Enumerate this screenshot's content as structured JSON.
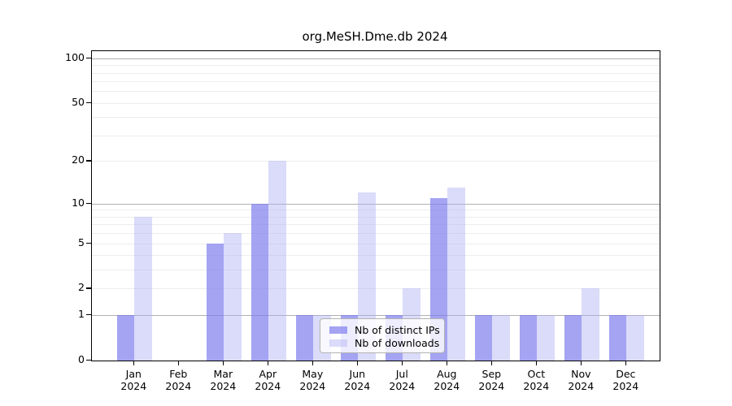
{
  "chart_data": {
    "type": "bar",
    "title": "org.MeSH.Dme.db 2024",
    "categories": [
      "Jan 2024",
      "Feb 2024",
      "Mar 2024",
      "Apr 2024",
      "May 2024",
      "Jun 2024",
      "Jul 2024",
      "Aug 2024",
      "Sep 2024",
      "Oct 2024",
      "Nov 2024",
      "Dec 2024"
    ],
    "month_names": [
      "Jan",
      "Feb",
      "Mar",
      "Apr",
      "May",
      "Jun",
      "Jul",
      "Aug",
      "Sep",
      "Oct",
      "Nov",
      "Dec"
    ],
    "year": "2024",
    "series": [
      {
        "name": "Nb of distinct IPs",
        "color": "rgba(125,125,238,0.7)",
        "color_hex_on_white": "#a4a4f3",
        "values": [
          1,
          0,
          5,
          10,
          1,
          1,
          1,
          11,
          1,
          1,
          1,
          1
        ]
      },
      {
        "name": "Nb of downloads",
        "color": "rgba(175,175,244,0.45)",
        "color_hex_on_white": "#dbdbf9",
        "values": [
          8,
          0,
          6,
          20,
          1,
          12,
          2,
          13,
          1,
          1,
          2,
          1
        ]
      }
    ],
    "xlabel": "",
    "ylabel": "",
    "y_scale": "log10(value+1)",
    "y_tick_labels": [
      "0",
      "1",
      "2",
      "5",
      "10",
      "20",
      "50",
      "100"
    ],
    "y_tick_values": [
      0,
      1,
      2,
      5,
      10,
      20,
      50,
      100
    ],
    "y_major_gridlines": [
      1,
      10,
      100
    ],
    "y_minor_gridlines": [
      2,
      3,
      4,
      5,
      6,
      7,
      8,
      9,
      20,
      30,
      40,
      50,
      60,
      70,
      80,
      90
    ],
    "ylim": [
      0,
      112
    ],
    "grid": "horizontal",
    "legend_position": "lower center",
    "colors": {
      "major_grid": "#b0b0b0",
      "minor_grid": "#ededed",
      "axis": "#000000",
      "background": "#ffffff"
    }
  }
}
